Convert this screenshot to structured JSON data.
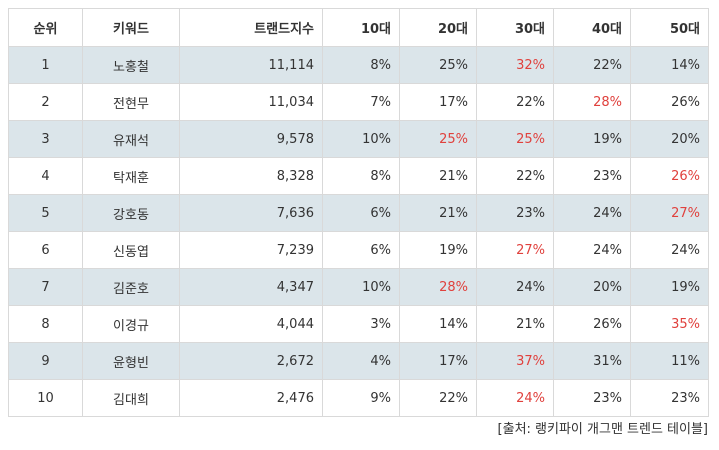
{
  "table": {
    "headers": [
      "순위",
      "키워드",
      "트랜드지수",
      "10대",
      "20대",
      "30대",
      "40대",
      "50대"
    ],
    "rows": [
      {
        "rank": "1",
        "keyword": "노홍철",
        "index": "11,114",
        "ages": [
          "8%",
          "25%",
          "32%",
          "22%",
          "14%"
        ],
        "highlight": [
          2
        ]
      },
      {
        "rank": "2",
        "keyword": "전현무",
        "index": "11,034",
        "ages": [
          "7%",
          "17%",
          "22%",
          "28%",
          "26%"
        ],
        "highlight": [
          3
        ]
      },
      {
        "rank": "3",
        "keyword": "유재석",
        "index": "9,578",
        "ages": [
          "10%",
          "25%",
          "25%",
          "19%",
          "20%"
        ],
        "highlight": [
          1,
          2
        ]
      },
      {
        "rank": "4",
        "keyword": "탁재훈",
        "index": "8,328",
        "ages": [
          "8%",
          "21%",
          "22%",
          "23%",
          "26%"
        ],
        "highlight": [
          4
        ]
      },
      {
        "rank": "5",
        "keyword": "강호동",
        "index": "7,636",
        "ages": [
          "6%",
          "21%",
          "23%",
          "24%",
          "27%"
        ],
        "highlight": [
          4
        ]
      },
      {
        "rank": "6",
        "keyword": "신동엽",
        "index": "7,239",
        "ages": [
          "6%",
          "19%",
          "27%",
          "24%",
          "24%"
        ],
        "highlight": [
          2
        ]
      },
      {
        "rank": "7",
        "keyword": "김준호",
        "index": "4,347",
        "ages": [
          "10%",
          "28%",
          "24%",
          "20%",
          "19%"
        ],
        "highlight": [
          1
        ]
      },
      {
        "rank": "8",
        "keyword": "이경규",
        "index": "4,044",
        "ages": [
          "3%",
          "14%",
          "21%",
          "26%",
          "35%"
        ],
        "highlight": [
          4
        ]
      },
      {
        "rank": "9",
        "keyword": "윤형빈",
        "index": "2,672",
        "ages": [
          "4%",
          "17%",
          "37%",
          "31%",
          "11%"
        ],
        "highlight": [
          2
        ]
      },
      {
        "rank": "10",
        "keyword": "김대희",
        "index": "2,476",
        "ages": [
          "9%",
          "22%",
          "24%",
          "23%",
          "23%"
        ],
        "highlight": [
          2
        ]
      }
    ]
  },
  "source": "[출처: 랭키파이 개그맨 트렌드 테이블]",
  "colors": {
    "highlight": "#e0413d",
    "row_shade": "#dbe5ea",
    "border": "#d9d9d9"
  }
}
